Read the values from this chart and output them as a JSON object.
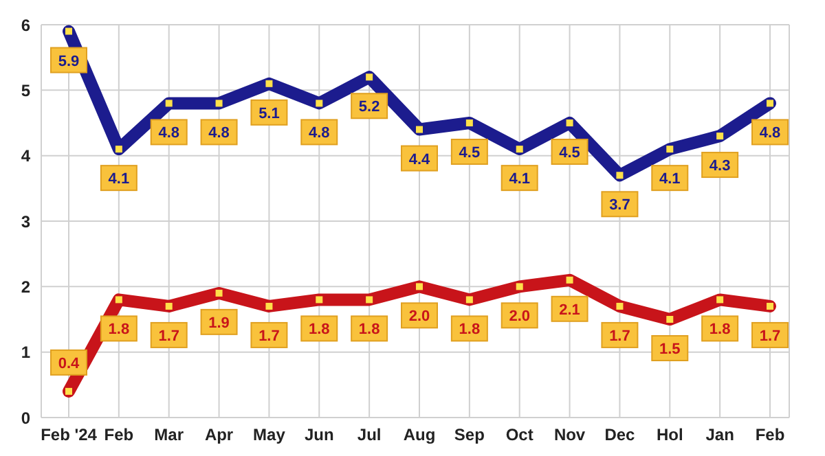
{
  "chart_data": {
    "type": "line",
    "categories": [
      "Feb '24",
      "Feb",
      "Mar",
      "Apr",
      "May",
      "Jun",
      "Jul",
      "Aug",
      "Sep",
      "Oct",
      "Nov",
      "Dec",
      "Hol",
      "Jan",
      "Feb"
    ],
    "series": [
      {
        "color": "#1c1c8e",
        "values": [
          5.9,
          4.1,
          4.8,
          4.8,
          5.1,
          4.8,
          5.2,
          4.4,
          4.5,
          4.1,
          4.5,
          3.7,
          4.1,
          4.3,
          4.8
        ],
        "value_labels": [
          "5.9",
          "4.1",
          "4.8",
          "4.8",
          "5.1",
          "4.8",
          "5.2",
          "4.4",
          "4.5",
          "4.1",
          "4.5",
          "3.7",
          "4.1",
          "4.3",
          "4.8"
        ]
      },
      {
        "color": "#c8141a",
        "values": [
          0.4,
          1.8,
          1.7,
          1.9,
          1.7,
          1.8,
          1.8,
          2.0,
          1.8,
          2.0,
          2.1,
          1.7,
          1.5,
          1.8,
          1.7
        ],
        "value_labels": [
          "0.4",
          "1.8",
          "1.7",
          "1.9",
          "1.7",
          "1.8",
          "1.8",
          "2.0",
          "1.8",
          "2.0",
          "2.1",
          "1.7",
          "1.5",
          "1.8",
          "1.7"
        ]
      }
    ],
    "ylim": [
      0,
      6
    ],
    "yticks": [
      0,
      1,
      2,
      3,
      4,
      5,
      6
    ],
    "grid": true,
    "marker": "square",
    "line_style": "solid"
  }
}
